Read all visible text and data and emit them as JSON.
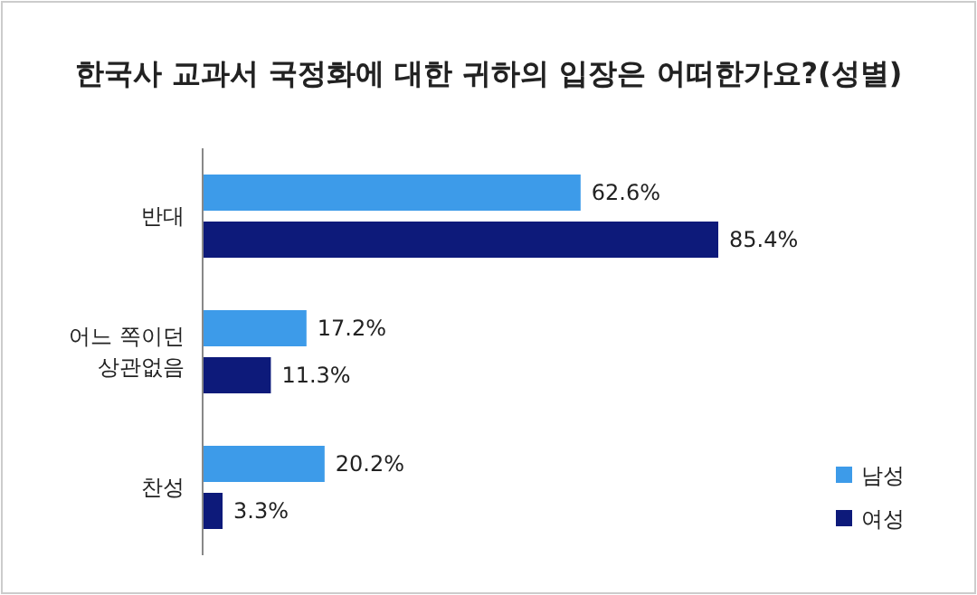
{
  "chart_data": {
    "type": "bar",
    "orientation": "horizontal",
    "title": "한국사 교과서 국정화에 대한 귀하의 입장은 어떠한가요?(성별)",
    "categories": [
      "반대",
      "어느 쪽이던\n상관없음",
      "찬성"
    ],
    "series": [
      {
        "name": "남성",
        "color": "#3d9be9",
        "values": [
          62.6,
          17.2,
          20.2
        ],
        "value_labels": [
          "62.6%",
          "17.2%",
          "20.2%"
        ]
      },
      {
        "name": "여성",
        "color": "#0d1a7a",
        "values": [
          85.4,
          11.3,
          3.3
        ],
        "value_labels": [
          "85.4%",
          "11.3%",
          "3.3%"
        ]
      }
    ],
    "legend": "bottom right"
  }
}
